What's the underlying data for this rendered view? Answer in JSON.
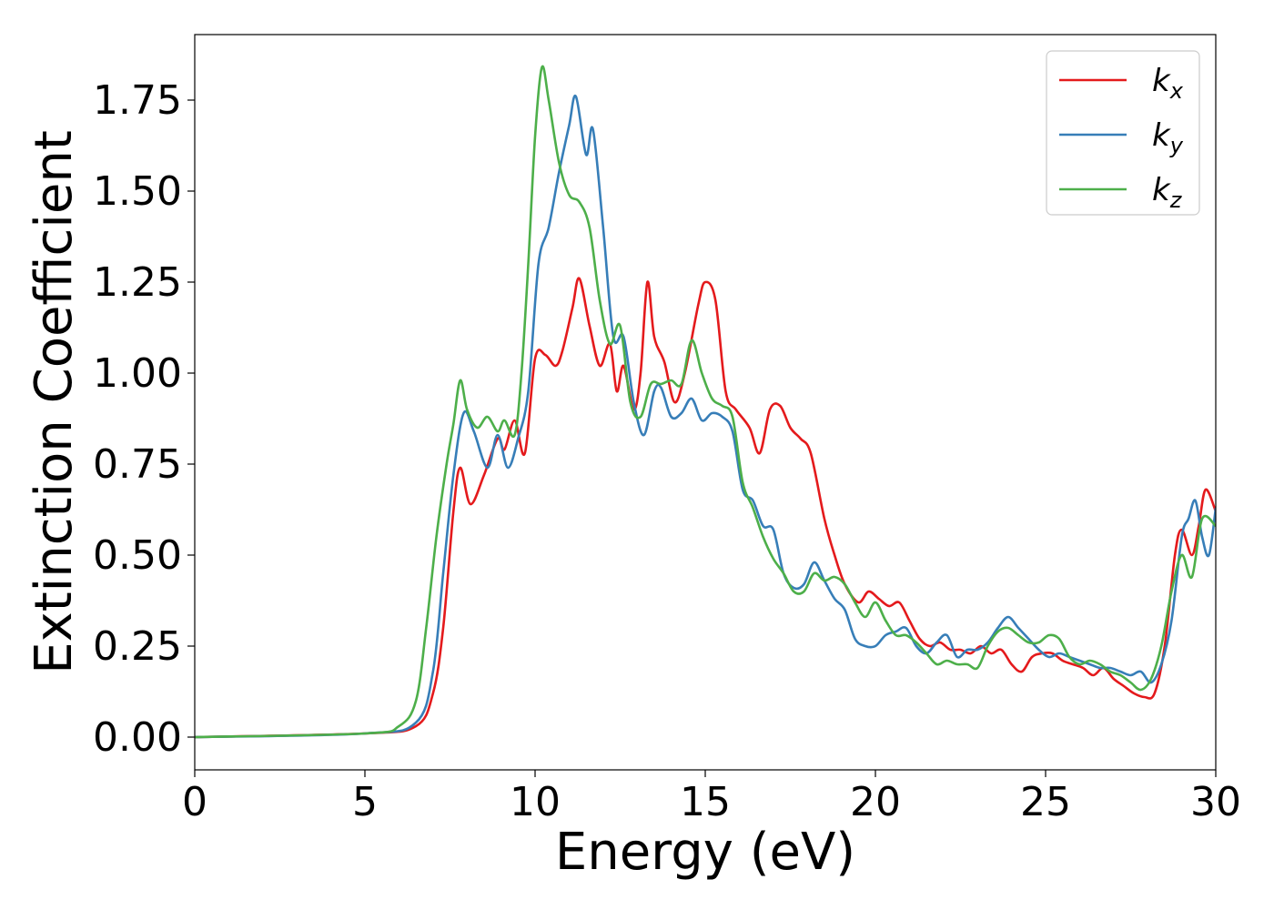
{
  "chart_data": {
    "type": "line",
    "title": "",
    "xlabel": "Energy (eV)",
    "ylabel": "Extinction Coefficient",
    "xlim": [
      0,
      30
    ],
    "ylim": [
      -0.09,
      1.93
    ],
    "xticks": [
      0,
      5,
      10,
      15,
      20,
      25,
      30
    ],
    "yticks": [
      0.0,
      0.25,
      0.5,
      0.75,
      1.0,
      1.25,
      1.5,
      1.75
    ],
    "ytick_labels": [
      "0.00",
      "0.25",
      "0.50",
      "0.75",
      "1.00",
      "1.25",
      "1.50",
      "1.75"
    ],
    "grid": false,
    "legend_position": "top-right",
    "series": [
      {
        "name": "k",
        "subscript": "x",
        "color": "#e41a1c",
        "x": [
          0,
          5,
          6.5,
          7.0,
          7.3,
          7.6,
          7.8,
          8.1,
          8.5,
          8.9,
          9.1,
          9.4,
          9.7,
          10.0,
          10.3,
          10.6,
          10.8,
          11.1,
          11.3,
          11.6,
          11.9,
          12.2,
          12.4,
          12.6,
          12.9,
          13.1,
          13.3,
          13.5,
          13.8,
          14.1,
          14.4,
          14.8,
          15.0,
          15.3,
          15.6,
          15.9,
          16.3,
          16.6,
          16.9,
          17.2,
          17.5,
          17.8,
          18.1,
          18.5,
          18.8,
          19.1,
          19.5,
          19.8,
          20.1,
          20.4,
          20.7,
          21.0,
          21.3,
          21.6,
          21.9,
          22.2,
          22.5,
          22.8,
          23.1,
          23.4,
          23.7,
          24.0,
          24.3,
          24.6,
          24.9,
          25.2,
          25.5,
          25.8,
          26.1,
          26.4,
          26.7,
          27.0,
          27.3,
          27.6,
          27.9,
          28.2,
          28.5,
          28.8,
          29.0,
          29.3,
          29.5,
          29.7,
          30.0
        ],
        "y": [
          0.0,
          0.01,
          0.03,
          0.12,
          0.3,
          0.62,
          0.74,
          0.64,
          0.72,
          0.82,
          0.79,
          0.87,
          0.78,
          1.04,
          1.05,
          1.02,
          1.06,
          1.18,
          1.26,
          1.13,
          1.02,
          1.08,
          0.95,
          1.02,
          0.9,
          1.0,
          1.25,
          1.1,
          1.03,
          0.92,
          1.0,
          1.19,
          1.25,
          1.2,
          0.95,
          0.9,
          0.85,
          0.78,
          0.9,
          0.91,
          0.85,
          0.82,
          0.78,
          0.6,
          0.5,
          0.42,
          0.37,
          0.4,
          0.38,
          0.36,
          0.37,
          0.32,
          0.27,
          0.25,
          0.26,
          0.24,
          0.24,
          0.23,
          0.25,
          0.23,
          0.24,
          0.2,
          0.18,
          0.22,
          0.23,
          0.23,
          0.21,
          0.2,
          0.19,
          0.17,
          0.19,
          0.16,
          0.14,
          0.12,
          0.11,
          0.12,
          0.25,
          0.5,
          0.57,
          0.5,
          0.58,
          0.68,
          0.62
        ]
      },
      {
        "name": "k",
        "subscript": "y",
        "color": "#377eb8",
        "x": [
          0,
          5,
          6.5,
          7.0,
          7.3,
          7.6,
          7.9,
          8.2,
          8.6,
          8.9,
          9.2,
          9.5,
          9.8,
          10.1,
          10.4,
          10.7,
          11.0,
          11.2,
          11.5,
          11.7,
          12.0,
          12.3,
          12.6,
          12.9,
          13.2,
          13.5,
          13.7,
          14.0,
          14.3,
          14.6,
          14.9,
          15.2,
          15.5,
          15.8,
          16.1,
          16.4,
          16.7,
          17.0,
          17.3,
          17.6,
          17.9,
          18.2,
          18.5,
          18.8,
          19.1,
          19.4,
          19.7,
          20.0,
          20.3,
          20.6,
          20.9,
          21.2,
          21.5,
          21.8,
          22.1,
          22.4,
          22.7,
          23.0,
          23.3,
          23.6,
          23.9,
          24.2,
          24.5,
          24.8,
          25.1,
          25.4,
          25.7,
          26.0,
          26.3,
          26.6,
          26.9,
          27.2,
          27.5,
          27.8,
          28.1,
          28.4,
          28.7,
          29.0,
          29.2,
          29.4,
          29.6,
          29.8,
          30.0
        ],
        "y": [
          0.0,
          0.01,
          0.04,
          0.18,
          0.45,
          0.72,
          0.89,
          0.84,
          0.74,
          0.83,
          0.74,
          0.82,
          0.95,
          1.3,
          1.4,
          1.55,
          1.68,
          1.76,
          1.6,
          1.67,
          1.4,
          1.1,
          1.1,
          0.92,
          0.83,
          0.95,
          0.96,
          0.88,
          0.89,
          0.93,
          0.87,
          0.89,
          0.88,
          0.84,
          0.68,
          0.65,
          0.58,
          0.57,
          0.45,
          0.41,
          0.42,
          0.48,
          0.43,
          0.38,
          0.35,
          0.27,
          0.25,
          0.25,
          0.28,
          0.29,
          0.3,
          0.25,
          0.23,
          0.26,
          0.28,
          0.22,
          0.24,
          0.24,
          0.26,
          0.3,
          0.33,
          0.3,
          0.27,
          0.24,
          0.22,
          0.23,
          0.22,
          0.21,
          0.2,
          0.19,
          0.19,
          0.18,
          0.17,
          0.18,
          0.15,
          0.2,
          0.32,
          0.55,
          0.6,
          0.65,
          0.55,
          0.5,
          0.63
        ]
      },
      {
        "name": "k",
        "subscript": "z",
        "color": "#4daf4a",
        "x": [
          0,
          5,
          6.0,
          6.5,
          6.8,
          7.1,
          7.4,
          7.6,
          7.8,
          8.0,
          8.3,
          8.6,
          8.9,
          9.1,
          9.4,
          9.6,
          9.8,
          10.0,
          10.2,
          10.4,
          10.7,
          11.0,
          11.3,
          11.6,
          11.9,
          12.2,
          12.5,
          12.8,
          13.1,
          13.4,
          13.7,
          14.0,
          14.3,
          14.6,
          14.9,
          15.2,
          15.5,
          15.8,
          16.1,
          16.4,
          16.7,
          17.0,
          17.3,
          17.6,
          17.9,
          18.2,
          18.5,
          18.8,
          19.1,
          19.4,
          19.7,
          20.0,
          20.3,
          20.6,
          20.9,
          21.2,
          21.5,
          21.8,
          22.1,
          22.4,
          22.7,
          23.0,
          23.3,
          23.6,
          23.9,
          24.2,
          24.5,
          24.8,
          25.1,
          25.4,
          25.7,
          26.0,
          26.3,
          26.6,
          26.9,
          27.2,
          27.5,
          27.8,
          28.1,
          28.4,
          28.7,
          29.0,
          29.3,
          29.6,
          30.0
        ],
        "y": [
          0.0,
          0.01,
          0.03,
          0.1,
          0.3,
          0.55,
          0.75,
          0.86,
          0.98,
          0.9,
          0.85,
          0.88,
          0.84,
          0.87,
          0.83,
          1.0,
          1.3,
          1.65,
          1.84,
          1.75,
          1.58,
          1.49,
          1.47,
          1.4,
          1.2,
          1.08,
          1.13,
          0.92,
          0.88,
          0.97,
          0.97,
          0.98,
          0.97,
          1.09,
          1.0,
          0.93,
          0.91,
          0.88,
          0.7,
          0.63,
          0.55,
          0.49,
          0.45,
          0.4,
          0.4,
          0.45,
          0.43,
          0.44,
          0.42,
          0.37,
          0.33,
          0.37,
          0.32,
          0.28,
          0.28,
          0.26,
          0.23,
          0.2,
          0.21,
          0.2,
          0.2,
          0.19,
          0.25,
          0.29,
          0.3,
          0.28,
          0.26,
          0.26,
          0.28,
          0.27,
          0.22,
          0.2,
          0.21,
          0.2,
          0.18,
          0.17,
          0.15,
          0.13,
          0.16,
          0.25,
          0.4,
          0.5,
          0.44,
          0.6,
          0.58
        ]
      }
    ]
  }
}
